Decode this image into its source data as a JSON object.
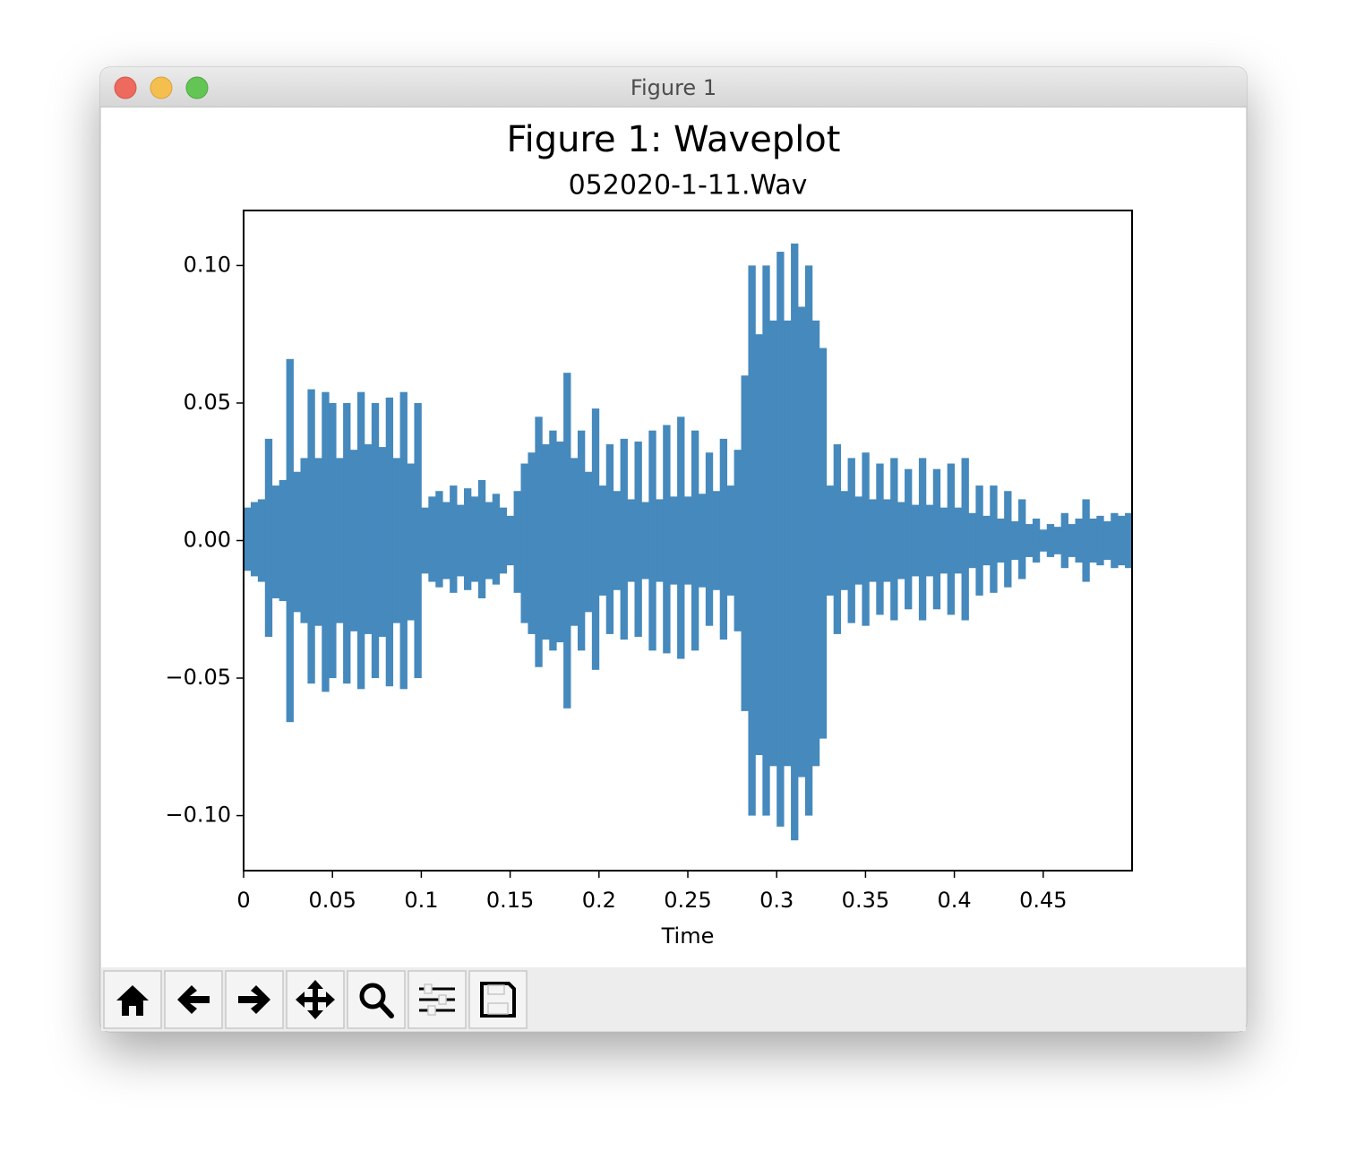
{
  "window": {
    "title": "Figure 1"
  },
  "chart_data": {
    "type": "waveplot",
    "title": "Figure 1: Waveplot",
    "subtitle": "052020-1-11.Wav",
    "xlabel": "Time",
    "color": "#4589bd",
    "xlim": [
      0,
      0.5
    ],
    "ylim": [
      -0.12,
      0.12
    ],
    "xticks": [
      0,
      0.05,
      0.1,
      0.15,
      0.2,
      0.25,
      0.3,
      0.35,
      0.4,
      0.45
    ],
    "yticks": [
      {
        "value": -0.1,
        "label": "−0.10"
      },
      {
        "value": -0.05,
        "label": "−0.05"
      },
      {
        "value": 0,
        "label": "0.00"
      },
      {
        "value": 0.05,
        "label": "0.05"
      },
      {
        "value": 0.1,
        "label": "0.10"
      }
    ],
    "x": [
      0,
      0.004,
      0.008,
      0.012,
      0.016,
      0.02,
      0.024,
      0.028,
      0.032,
      0.036,
      0.04,
      0.044,
      0.048,
      0.052,
      0.056,
      0.06,
      0.064,
      0.068,
      0.072,
      0.076,
      0.08,
      0.084,
      0.088,
      0.092,
      0.096,
      0.1,
      0.104,
      0.108,
      0.112,
      0.116,
      0.12,
      0.124,
      0.128,
      0.132,
      0.136,
      0.14,
      0.144,
      0.148,
      0.152,
      0.156,
      0.16,
      0.164,
      0.168,
      0.172,
      0.176,
      0.18,
      0.184,
      0.188,
      0.192,
      0.196,
      0.2,
      0.204,
      0.208,
      0.212,
      0.216,
      0.22,
      0.224,
      0.228,
      0.232,
      0.236,
      0.24,
      0.244,
      0.248,
      0.252,
      0.256,
      0.26,
      0.264,
      0.268,
      0.272,
      0.276,
      0.28,
      0.284,
      0.288,
      0.292,
      0.296,
      0.3,
      0.304,
      0.308,
      0.312,
      0.316,
      0.32,
      0.324,
      0.328,
      0.332,
      0.336,
      0.34,
      0.344,
      0.348,
      0.352,
      0.356,
      0.36,
      0.364,
      0.368,
      0.372,
      0.376,
      0.38,
      0.384,
      0.388,
      0.392,
      0.396,
      0.4,
      0.404,
      0.408,
      0.412,
      0.416,
      0.42,
      0.424,
      0.428,
      0.432,
      0.436,
      0.44,
      0.444,
      0.448,
      0.452,
      0.456,
      0.46,
      0.464,
      0.468,
      0.472,
      0.476,
      0.48,
      0.484,
      0.488,
      0.492,
      0.496
    ],
    "upper": [
      0.012,
      0.014,
      0.015,
      0.037,
      0.02,
      0.022,
      0.066,
      0.025,
      0.03,
      0.055,
      0.03,
      0.054,
      0.05,
      0.03,
      0.05,
      0.033,
      0.054,
      0.035,
      0.05,
      0.034,
      0.052,
      0.03,
      0.054,
      0.028,
      0.05,
      0.012,
      0.016,
      0.018,
      0.014,
      0.02,
      0.013,
      0.019,
      0.016,
      0.022,
      0.014,
      0.017,
      0.012,
      0.009,
      0.018,
      0.028,
      0.032,
      0.045,
      0.035,
      0.04,
      0.036,
      0.061,
      0.03,
      0.04,
      0.025,
      0.048,
      0.02,
      0.035,
      0.018,
      0.037,
      0.015,
      0.036,
      0.014,
      0.04,
      0.015,
      0.042,
      0.016,
      0.045,
      0.016,
      0.04,
      0.017,
      0.032,
      0.018,
      0.037,
      0.02,
      0.033,
      0.06,
      0.1,
      0.075,
      0.1,
      0.08,
      0.105,
      0.08,
      0.108,
      0.085,
      0.1,
      0.08,
      0.07,
      0.02,
      0.035,
      0.018,
      0.03,
      0.016,
      0.032,
      0.015,
      0.028,
      0.015,
      0.03,
      0.014,
      0.026,
      0.013,
      0.03,
      0.013,
      0.026,
      0.012,
      0.028,
      0.012,
      0.03,
      0.01,
      0.02,
      0.009,
      0.02,
      0.008,
      0.018,
      0.007,
      0.015,
      0.006,
      0.008,
      0.004,
      0.006,
      0.005,
      0.01,
      0.006,
      0.008,
      0.015,
      0.008,
      0.009,
      0.007,
      0.01,
      0.009,
      0.01
    ],
    "lower": [
      -0.011,
      -0.013,
      -0.015,
      -0.035,
      -0.021,
      -0.022,
      -0.066,
      -0.026,
      -0.03,
      -0.052,
      -0.031,
      -0.055,
      -0.05,
      -0.03,
      -0.052,
      -0.033,
      -0.054,
      -0.034,
      -0.05,
      -0.035,
      -0.053,
      -0.03,
      -0.054,
      -0.029,
      -0.05,
      -0.012,
      -0.015,
      -0.017,
      -0.014,
      -0.019,
      -0.013,
      -0.018,
      -0.015,
      -0.021,
      -0.014,
      -0.016,
      -0.012,
      -0.009,
      -0.019,
      -0.03,
      -0.034,
      -0.046,
      -0.036,
      -0.04,
      -0.037,
      -0.061,
      -0.031,
      -0.04,
      -0.026,
      -0.047,
      -0.02,
      -0.034,
      -0.018,
      -0.036,
      -0.015,
      -0.035,
      -0.014,
      -0.04,
      -0.015,
      -0.041,
      -0.016,
      -0.043,
      -0.016,
      -0.04,
      -0.017,
      -0.031,
      -0.018,
      -0.036,
      -0.02,
      -0.033,
      -0.062,
      -0.1,
      -0.078,
      -0.1,
      -0.082,
      -0.104,
      -0.082,
      -0.109,
      -0.086,
      -0.1,
      -0.082,
      -0.072,
      -0.02,
      -0.034,
      -0.018,
      -0.03,
      -0.016,
      -0.031,
      -0.015,
      -0.027,
      -0.015,
      -0.029,
      -0.014,
      -0.025,
      -0.013,
      -0.029,
      -0.013,
      -0.025,
      -0.012,
      -0.027,
      -0.012,
      -0.029,
      -0.01,
      -0.02,
      -0.009,
      -0.019,
      -0.008,
      -0.017,
      -0.007,
      -0.014,
      -0.006,
      -0.008,
      -0.004,
      -0.006,
      -0.005,
      -0.01,
      -0.006,
      -0.008,
      -0.015,
      -0.008,
      -0.009,
      -0.007,
      -0.01,
      -0.009,
      -0.01
    ]
  }
}
